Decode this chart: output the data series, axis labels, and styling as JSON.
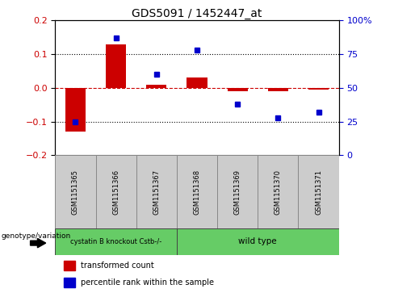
{
  "title": "GDS5091 / 1452447_at",
  "samples": [
    "GSM1151365",
    "GSM1151366",
    "GSM1151367",
    "GSM1151368",
    "GSM1151369",
    "GSM1151370",
    "GSM1151371"
  ],
  "red_bars": [
    -0.13,
    0.13,
    0.01,
    0.03,
    -0.01,
    -0.01,
    -0.005
  ],
  "blue_dots": [
    25,
    87,
    60,
    78,
    38,
    28,
    32
  ],
  "ylim_left": [
    -0.2,
    0.2
  ],
  "ylim_right": [
    0,
    100
  ],
  "yticks_left": [
    -0.2,
    -0.1,
    0.0,
    0.1,
    0.2
  ],
  "yticks_right": [
    0,
    25,
    50,
    75,
    100
  ],
  "ytick_labels_right": [
    "0",
    "25",
    "50",
    "75",
    "100%"
  ],
  "group1_label": "cystatin B knockout Cstb-/-",
  "group1_count": 3,
  "group2_label": "wild type",
  "group2_count": 4,
  "group_label": "genotype/variation",
  "bar_color": "#CC0000",
  "dot_color": "#0000CC",
  "zero_line_color": "#CC0000",
  "dotted_line_color": "#000000",
  "background_color": "#ffffff",
  "plot_bg_color": "#ffffff",
  "legend_red_label": "transformed count",
  "legend_blue_label": "percentile rank within the sample",
  "bar_width": 0.5,
  "green_color": "#66CC66",
  "sample_box_color": "#cccccc",
  "sample_box_edge": "#888888"
}
